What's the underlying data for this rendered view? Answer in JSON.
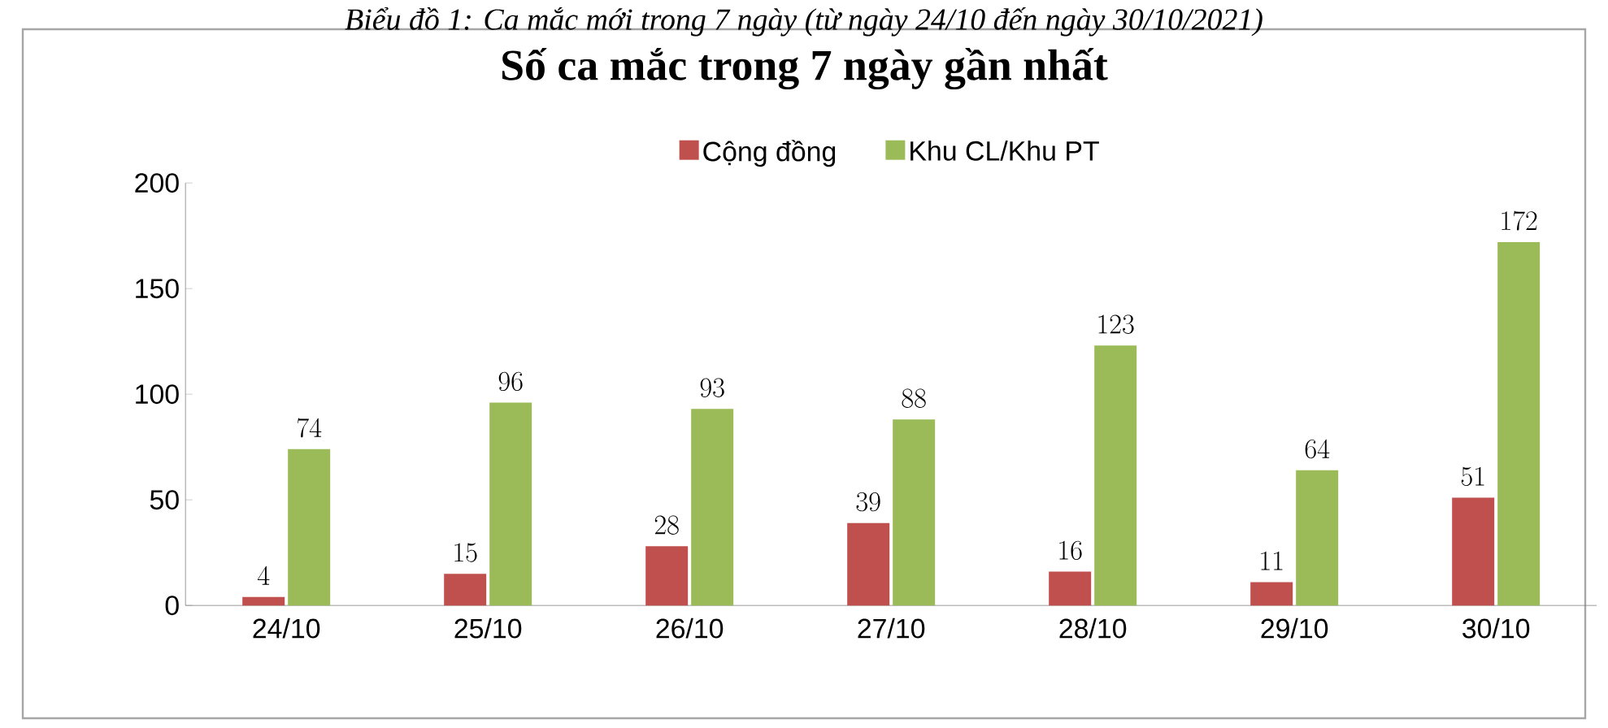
{
  "chart_data": {
    "type": "bar",
    "title": "Số ca mắc trong 7 ngày gần nhất",
    "annotations": [
      "Biểu đồ 1: Ca mắc mới trong 7 ngày (từ ngày 24/10 đến ngày 30/10/2021)"
    ],
    "categories": [
      "24/10",
      "25/10",
      "26/10",
      "27/10",
      "28/10",
      "29/10",
      "30/10"
    ],
    "series": [
      {
        "name": "Cộng đồng",
        "color": "#c0504d",
        "values": [
          4,
          15,
          28,
          39,
          16,
          11,
          51
        ]
      },
      {
        "name": "Khu CL/Khu PT",
        "color": "#9bbb59",
        "values": [
          74,
          96,
          93,
          88,
          123,
          64,
          172
        ]
      }
    ],
    "ylim": [
      0,
      200
    ],
    "yticks": [
      0,
      50,
      100,
      150,
      200
    ],
    "data_labels": true,
    "legend": "top",
    "grid": false
  }
}
